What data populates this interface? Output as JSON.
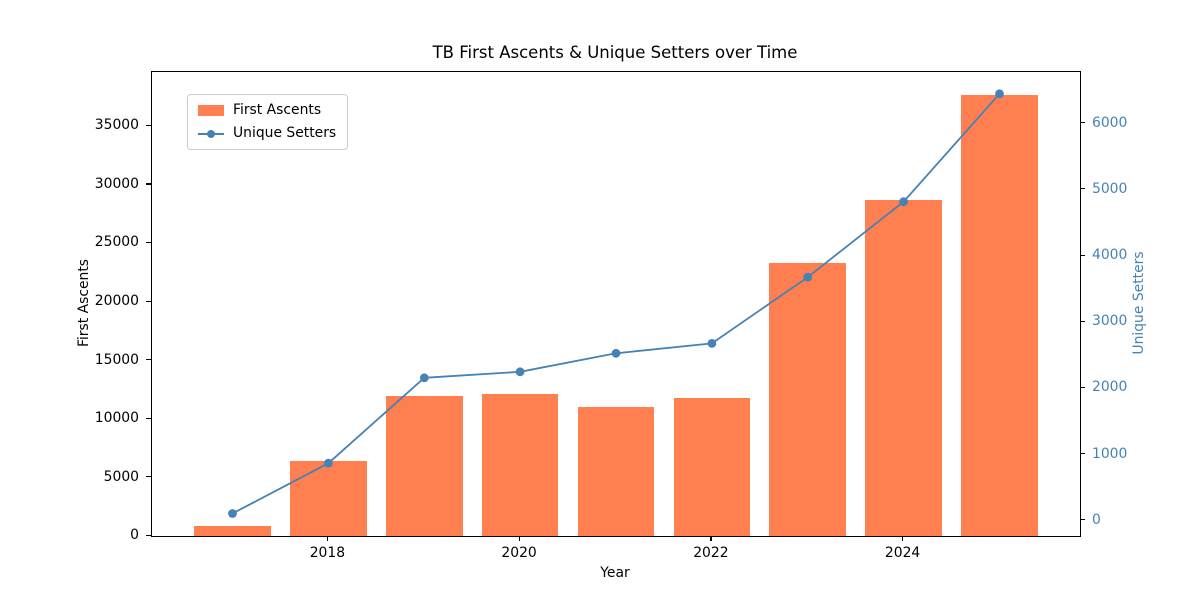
{
  "chart_data": {
    "type": "bar",
    "title": "TB First Ascents & Unique Setters over Time",
    "xlabel": "Year",
    "ylabel_left": "First Ascents",
    "ylabel_right": "Unique Setters",
    "categories": [
      2017,
      2018,
      2019,
      2020,
      2021,
      2022,
      2023,
      2024,
      2025
    ],
    "series": [
      {
        "name": "First Ascents",
        "type": "bar",
        "axis": "left",
        "color": "#FF7F50",
        "values": [
          900,
          6400,
          11950,
          12100,
          11000,
          11800,
          23300,
          28700,
          37650
        ]
      },
      {
        "name": "Unique Setters",
        "type": "line",
        "axis": "right",
        "color": "#4682B4",
        "values": [
          110,
          870,
          2160,
          2250,
          2530,
          2680,
          3680,
          4820,
          6450
        ]
      }
    ],
    "xlim": [
      2016.16,
      2025.84
    ],
    "ylim_left": [
      0,
      39650
    ],
    "ylim_right": [
      -230,
      6780
    ],
    "yticks_left": [
      0,
      5000,
      10000,
      15000,
      20000,
      25000,
      30000,
      35000
    ],
    "yticks_right": [
      0,
      1000,
      2000,
      3000,
      4000,
      5000,
      6000
    ],
    "xticks": [
      2018,
      2020,
      2022,
      2024
    ],
    "bar_width_units": 0.8,
    "grid": false,
    "legend_position": "upper-left",
    "colors": {
      "bar": "#FF7F50",
      "line": "#4682B4",
      "left_axis_text": "#000000",
      "right_axis_text": "#4682B4",
      "spine": "#000000",
      "legend_border": "#cccccc"
    }
  }
}
